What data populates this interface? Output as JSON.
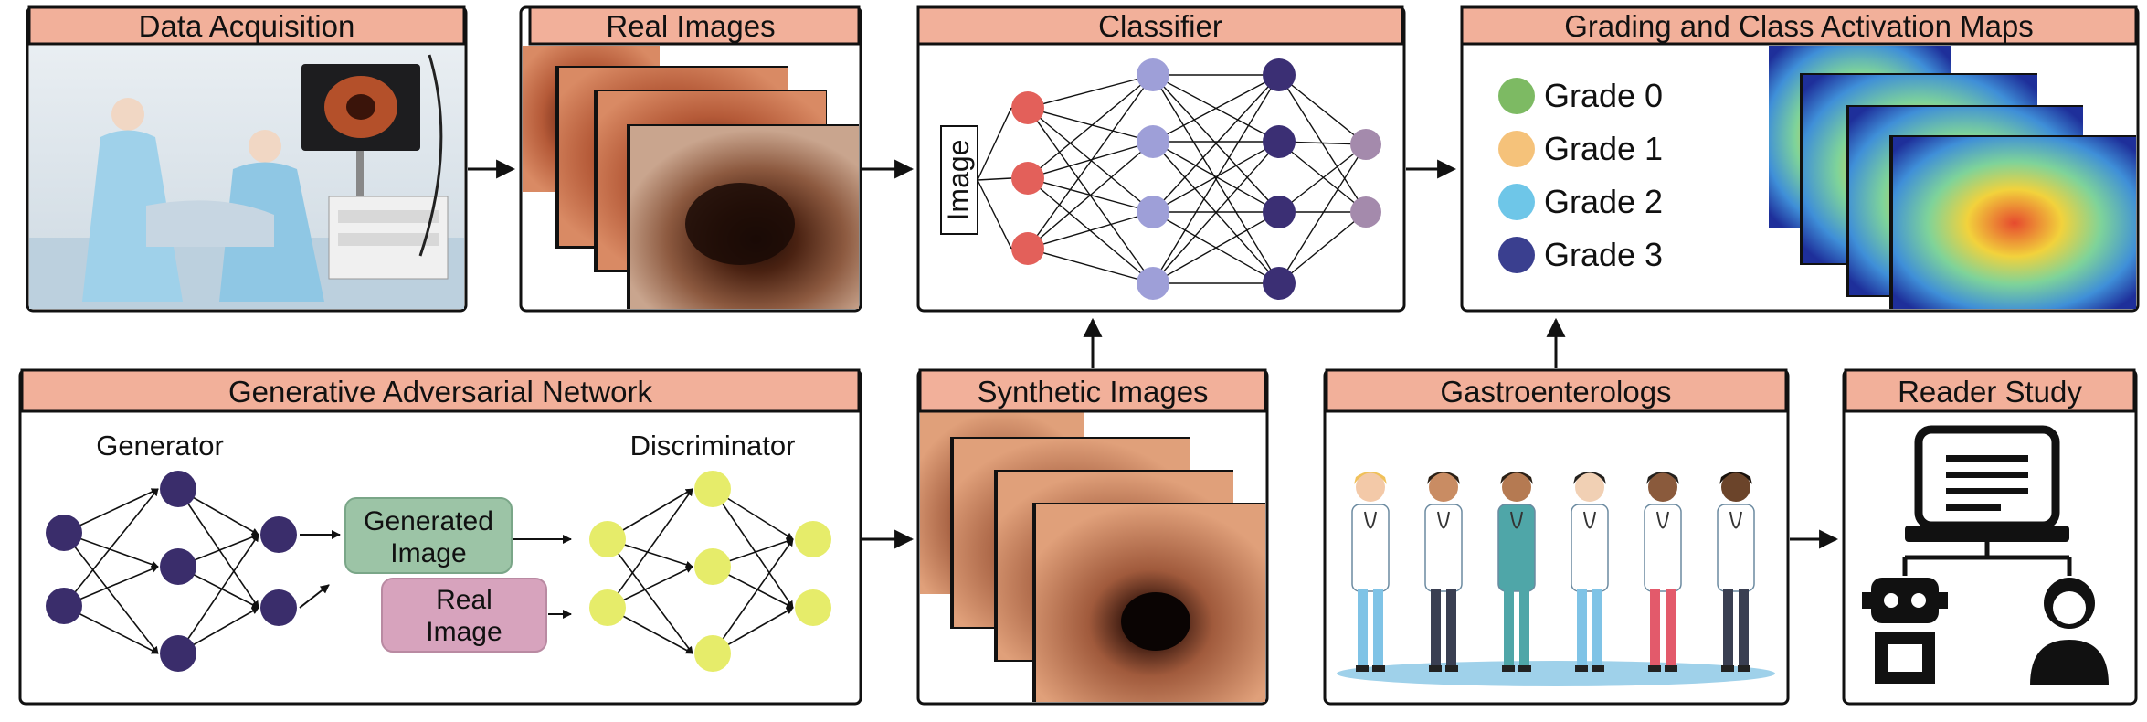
{
  "panels": {
    "data_acquisition": "Data Acquisition",
    "real_images": "Real Images",
    "classifier": "Classifier",
    "grading": "Grading and Class Activation Maps",
    "gan": "Generative Adversarial Network",
    "synthetic_images": "Synthetic Images",
    "gastroenterologs": "Gastroenterologs",
    "reader_study": "Reader Study"
  },
  "classifier": {
    "input_label": "Image"
  },
  "grading": {
    "legend": [
      {
        "label": "Grade 0",
        "color": "#7dba63"
      },
      {
        "label": "Grade 1",
        "color": "#f5c27a"
      },
      {
        "label": "Grade 2",
        "color": "#6ec6e8"
      },
      {
        "label": "Grade 3",
        "color": "#3a3f8f"
      }
    ]
  },
  "gan": {
    "generator": "Generator",
    "discriminator": "Discriminator",
    "generated_image": [
      "Generated",
      "Image"
    ],
    "real_image": [
      "Real",
      "Image"
    ]
  },
  "colors": {
    "header_fill": "#f2b09a",
    "node_red": "#e3605a",
    "node_lavender": "#9e9fd8",
    "node_navy": "#3b2f74",
    "node_mauve": "#a48aac",
    "node_purple": "#3a2d6b",
    "node_yellow": "#e6ec6a",
    "generated_box": "#9cc4a6",
    "real_box": "#d7a3bd"
  }
}
